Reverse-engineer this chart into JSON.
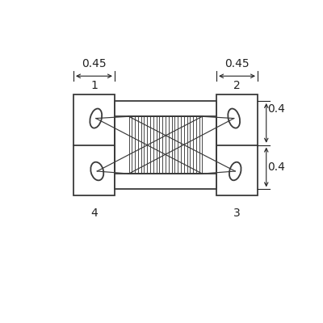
{
  "bg_color": "#ffffff",
  "line_color": "#3a3a3a",
  "figsize": [
    4.0,
    4.0
  ],
  "dpi": 100,
  "lw_main": 1.3,
  "lw_coil": 0.65,
  "lw_wire": 0.85,
  "lw_dim": 0.8,
  "fs_label": 10,
  "fs_pin": 10,
  "xlim": [
    0,
    400
  ],
  "ylim": [
    0,
    400
  ]
}
